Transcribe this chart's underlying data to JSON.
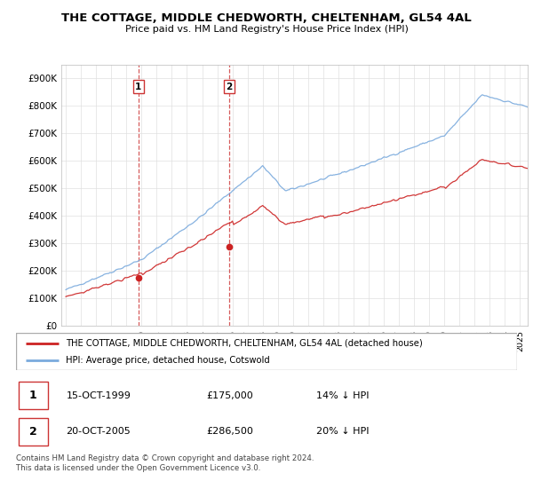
{
  "title": "THE COTTAGE, MIDDLE CHEDWORTH, CHELTENHAM, GL54 4AL",
  "subtitle": "Price paid vs. HM Land Registry's House Price Index (HPI)",
  "ylabel_ticks": [
    "£0",
    "£100K",
    "£200K",
    "£300K",
    "£400K",
    "£500K",
    "£600K",
    "£700K",
    "£800K",
    "£900K"
  ],
  "ytick_values": [
    0,
    100000,
    200000,
    300000,
    400000,
    500000,
    600000,
    700000,
    800000,
    900000
  ],
  "ylim": [
    0,
    950000
  ],
  "xlim_start": 1994.7,
  "xlim_end": 2025.5,
  "sale1_date": 1999.79,
  "sale1_price": 175000,
  "sale1_label": "1",
  "sale2_date": 2005.8,
  "sale2_price": 286500,
  "sale2_label": "2",
  "hpi_color": "#7aaadd",
  "price_color": "#cc2222",
  "vline_color": "#cc3333",
  "legend_line1": "THE COTTAGE, MIDDLE CHEDWORTH, CHELTENHAM, GL54 4AL (detached house)",
  "legend_line2": "HPI: Average price, detached house, Cotswold",
  "table_row1_label": "1",
  "table_row1_date": "15-OCT-1999",
  "table_row1_price": "£175,000",
  "table_row1_hpi": "14% ↓ HPI",
  "table_row2_label": "2",
  "table_row2_date": "20-OCT-2005",
  "table_row2_price": "£286,500",
  "table_row2_hpi": "20% ↓ HPI",
  "footnote": "Contains HM Land Registry data © Crown copyright and database right 2024.\nThis data is licensed under the Open Government Licence v3.0.",
  "background_color": "#ffffff",
  "grid_color": "#e0e0e0"
}
